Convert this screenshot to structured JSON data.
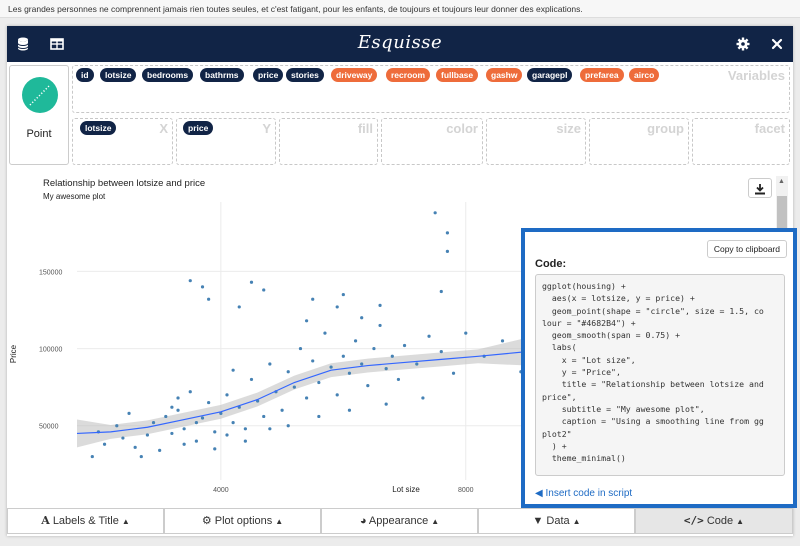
{
  "message": "Les grandes personnes ne comprennent jamais rien toutes seules, et c'est fatigant, pour les enfants, de toujours et toujours leur donner des explications.",
  "header": {
    "title": "Esquisse"
  },
  "geom": {
    "label": "Point"
  },
  "variables": {
    "zone_label": "Variables",
    "items": [
      {
        "label": "id",
        "type": "continuous"
      },
      {
        "label": "lotsize",
        "type": "continuous"
      },
      {
        "label": "bedrooms",
        "type": "continuous"
      },
      {
        "label": "bathrms",
        "type": "continuous"
      },
      {
        "label": "price",
        "type": "continuous"
      },
      {
        "label": "stories",
        "type": "continuous"
      },
      {
        "label": "driveway",
        "type": "discrete"
      },
      {
        "label": "recroom",
        "type": "discrete"
      },
      {
        "label": "fullbase",
        "type": "discrete"
      },
      {
        "label": "gashw",
        "type": "discrete"
      },
      {
        "label": "garagepl",
        "type": "continuous"
      },
      {
        "label": "prefarea",
        "type": "discrete"
      },
      {
        "label": "airco",
        "type": "discrete"
      }
    ]
  },
  "mappings": [
    {
      "zone": "X",
      "value": "lotsize"
    },
    {
      "zone": "Y",
      "value": "price"
    },
    {
      "zone": "fill",
      "value": ""
    },
    {
      "zone": "color",
      "value": ""
    },
    {
      "zone": "size",
      "value": ""
    },
    {
      "zone": "group",
      "value": ""
    },
    {
      "zone": "facet",
      "value": ""
    }
  ],
  "chart_data": {
    "type": "scatter",
    "title": "Relationship between lotsize and price",
    "subtitle": "My awesome plot",
    "xlabel": "Lot size",
    "ylabel": "Price",
    "x_ticks": [
      4000,
      8000
    ],
    "y_ticks": [
      50000,
      100000,
      150000
    ],
    "xlim": [
      1650,
      9000
    ],
    "ylim": [
      20000,
      195000
    ],
    "point_color": "#4682B4",
    "smooth_color": "#3366FF",
    "smooth_x": [
      1650,
      2200,
      2800,
      3400,
      4000,
      4600,
      5200,
      5800,
      6400,
      7000,
      7600,
      8200,
      9000
    ],
    "smooth_y": [
      45000,
      46000,
      49000,
      54000,
      59000,
      67000,
      78000,
      86000,
      89000,
      91000,
      93000,
      95000,
      98000
    ],
    "points": [
      [
        7500,
        188000
      ],
      [
        7700,
        175000
      ],
      [
        7700,
        163000
      ],
      [
        7600,
        137000
      ],
      [
        9000,
        175000
      ],
      [
        4500,
        143000
      ],
      [
        4700,
        138000
      ],
      [
        5500,
        132000
      ],
      [
        5900,
        127000
      ],
      [
        6000,
        135000
      ],
      [
        3500,
        144000
      ],
      [
        3700,
        140000
      ],
      [
        3800,
        132000
      ],
      [
        4300,
        127000
      ],
      [
        6600,
        128000
      ],
      [
        2100,
        38000
      ],
      [
        2400,
        42000
      ],
      [
        2700,
        30000
      ],
      [
        2900,
        52000
      ],
      [
        3100,
        56000
      ],
      [
        3200,
        45000
      ],
      [
        3300,
        60000
      ],
      [
        3400,
        48000
      ],
      [
        3500,
        72000
      ],
      [
        3600,
        40000
      ],
      [
        3700,
        55000
      ],
      [
        3800,
        65000
      ],
      [
        3900,
        46000
      ],
      [
        4000,
        58000
      ],
      [
        4100,
        70000
      ],
      [
        4200,
        52000
      ],
      [
        4300,
        62000
      ],
      [
        4400,
        48000
      ],
      [
        4500,
        80000
      ],
      [
        4600,
        66000
      ],
      [
        4700,
        56000
      ],
      [
        4800,
        90000
      ],
      [
        4900,
        72000
      ],
      [
        5000,
        60000
      ],
      [
        5100,
        85000
      ],
      [
        5200,
        75000
      ],
      [
        5300,
        100000
      ],
      [
        5400,
        68000
      ],
      [
        5500,
        92000
      ],
      [
        5600,
        78000
      ],
      [
        5700,
        110000
      ],
      [
        5800,
        88000
      ],
      [
        5900,
        70000
      ],
      [
        6000,
        95000
      ],
      [
        6100,
        84000
      ],
      [
        6200,
        105000
      ],
      [
        6300,
        90000
      ],
      [
        6400,
        76000
      ],
      [
        6500,
        100000
      ],
      [
        6600,
        115000
      ],
      [
        6700,
        87000
      ],
      [
        6800,
        95000
      ],
      [
        6900,
        80000
      ],
      [
        7000,
        102000
      ],
      [
        7200,
        90000
      ],
      [
        7400,
        108000
      ],
      [
        7600,
        98000
      ],
      [
        7800,
        84000
      ],
      [
        8000,
        110000
      ],
      [
        8300,
        95000
      ],
      [
        8600,
        105000
      ],
      [
        8900,
        85000
      ],
      [
        1900,
        30000
      ],
      [
        2300,
        50000
      ],
      [
        2600,
        36000
      ],
      [
        2800,
        44000
      ],
      [
        3000,
        34000
      ],
      [
        3200,
        62000
      ],
      [
        3400,
        38000
      ],
      [
        3600,
        52000
      ],
      [
        3900,
        35000
      ],
      [
        4100,
        44000
      ],
      [
        4400,
        40000
      ],
      [
        4800,
        48000
      ],
      [
        5100,
        50000
      ],
      [
        5600,
        56000
      ],
      [
        6100,
        60000
      ],
      [
        6700,
        64000
      ],
      [
        7300,
        68000
      ],
      [
        2000,
        46000
      ],
      [
        2500,
        58000
      ],
      [
        3300,
        68000
      ],
      [
        4200,
        86000
      ],
      [
        5400,
        118000
      ],
      [
        6300,
        120000
      ]
    ]
  },
  "code_panel": {
    "copy_label": "Copy to clipboard",
    "title": "Code:",
    "code": "ggplot(housing) +\n  aes(x = lotsize, y = price) +\n  geom_point(shape = \"circle\", size = 1.5, co\nlour = \"#4682B4\") +\n  geom_smooth(span = 0.75) +\n  labs(\n    x = \"Lot size\",\n    y = \"Price\",\n    title = \"Relationship between lotsize and\nprice\",\n    subtitle = \"My awesome plot\",\n    caption = \"Using a smoothing line from gg\nplot2\"\n  ) +\n  theme_minimal()",
    "insert_label": "Insert code in script"
  },
  "bottom_tabs": [
    {
      "label": "Labels & Title",
      "icon": "font-icon"
    },
    {
      "label": "Plot options",
      "icon": "gears-icon"
    },
    {
      "label": "Appearance",
      "icon": "palette-icon"
    },
    {
      "label": "Data",
      "icon": "filter-icon"
    },
    {
      "label": "Code",
      "icon": "code-icon"
    }
  ]
}
